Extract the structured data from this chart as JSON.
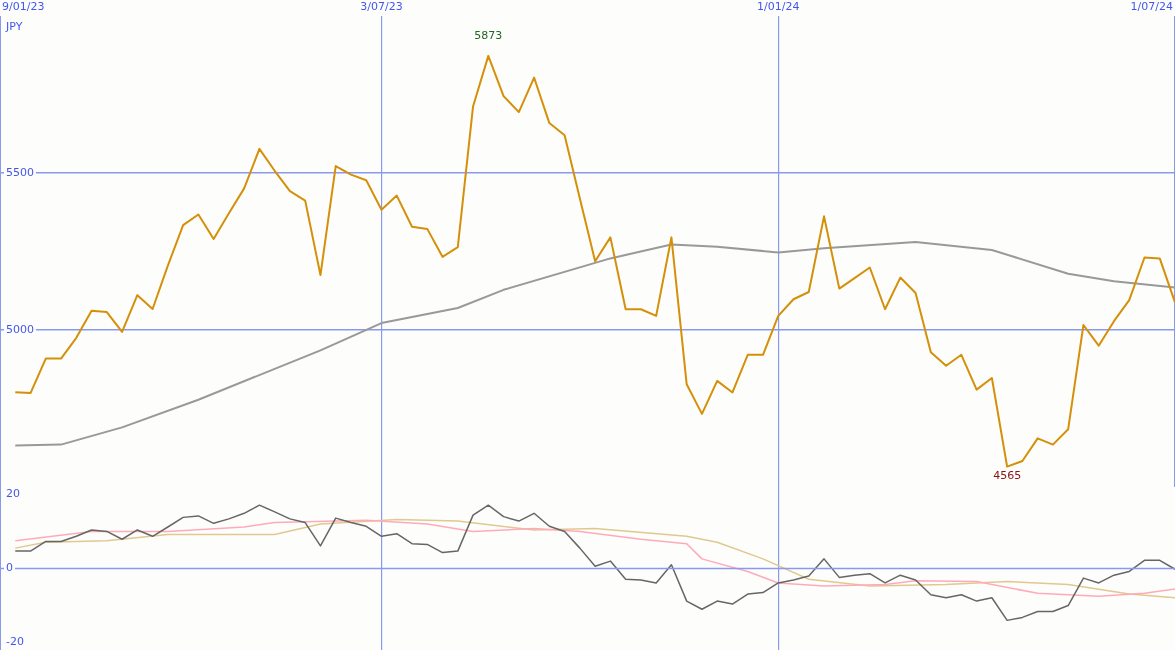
{
  "chart_data": [
    {
      "type": "line",
      "ylabel": "JPY",
      "marker": "none",
      "line_style": "solid",
      "grid": true,
      "legend": false,
      "xlim": [
        "2023-01-09",
        "2024-07-01"
      ],
      "xticks": [
        {
          "value": "2023-01-09",
          "label": "9/01/23"
        },
        {
          "value": "2023-07-03",
          "label": "3/07/23"
        },
        {
          "value": "2024-01-01",
          "label": "1/01/24"
        },
        {
          "value": "2024-07-01",
          "label": "1/07/24"
        }
      ],
      "ylim": [
        4500,
        6000
      ],
      "yticks": [
        5000,
        5500
      ],
      "x": [
        "2023-01-16",
        "2023-01-23",
        "2023-01-30",
        "2023-02-06",
        "2023-02-13",
        "2023-02-20",
        "2023-02-27",
        "2023-03-06",
        "2023-03-13",
        "2023-03-20",
        "2023-03-27",
        "2023-04-03",
        "2023-04-10",
        "2023-04-17",
        "2023-04-24",
        "2023-05-01",
        "2023-05-08",
        "2023-05-15",
        "2023-05-22",
        "2023-05-29",
        "2023-06-05",
        "2023-06-12",
        "2023-06-19",
        "2023-06-26",
        "2023-07-03",
        "2023-07-10",
        "2023-07-17",
        "2023-07-24",
        "2023-07-31",
        "2023-08-07",
        "2023-08-14",
        "2023-08-21",
        "2023-08-28",
        "2023-09-04",
        "2023-09-11",
        "2023-09-18",
        "2023-09-25",
        "2023-10-02",
        "2023-10-09",
        "2023-10-16",
        "2023-10-23",
        "2023-10-30",
        "2023-11-06",
        "2023-11-13",
        "2023-11-20",
        "2023-11-27",
        "2023-12-04",
        "2023-12-11",
        "2023-12-18",
        "2023-12-25",
        "2024-01-01",
        "2024-01-08",
        "2024-01-15",
        "2024-01-22",
        "2024-01-29",
        "2024-02-05",
        "2024-02-12",
        "2024-02-19",
        "2024-02-26",
        "2024-03-04",
        "2024-03-11",
        "2024-03-18",
        "2024-03-25",
        "2024-04-01",
        "2024-04-08",
        "2024-04-15",
        "2024-04-22",
        "2024-04-29",
        "2024-05-06",
        "2024-05-13",
        "2024-05-20",
        "2024-05-27",
        "2024-06-03",
        "2024-06-10",
        "2024-06-17",
        "2024-06-24",
        "2024-07-01"
      ],
      "series": [
        {
          "color": "#d4900a",
          "values": [
            4802,
            4799,
            4909,
            4909,
            4975,
            5061,
            5057,
            4994,
            5111,
            5067,
            5205,
            5334,
            5368,
            5290,
            5372,
            5451,
            5577,
            5507,
            5442,
            5412,
            5175,
            5522,
            5495,
            5477,
            5383,
            5428,
            5329,
            5322,
            5233,
            5264,
            5712,
            5873,
            5745,
            5694,
            5804,
            5659,
            5620,
            5419,
            5219,
            5295,
            5066,
            5066,
            5045,
            5295,
            4827,
            4733,
            4838,
            4801,
            4921,
            4921,
            5045,
            5098,
            5121,
            5362,
            5132,
            5165,
            5199,
            5066,
            5167,
            5118,
            4929,
            4886,
            4921,
            4810,
            4847,
            4565,
            4583,
            4655,
            4635,
            4684,
            5016,
            4950,
            5028,
            5095,
            5231,
            5228,
            5088
          ]
        },
        {
          "color": "#999999",
          "x": [
            "2023-01-16",
            "2023-02-06",
            "2023-03-06",
            "2023-04-10",
            "2023-06-05",
            "2023-07-03",
            "2023-08-07",
            "2023-08-28",
            "2023-10-16",
            "2023-11-13",
            "2023-12-04",
            "2024-01-01",
            "2024-01-22",
            "2024-03-04",
            "2024-04-08",
            "2024-05-13",
            "2024-06-03",
            "2024-07-01"
          ],
          "values": [
            4632,
            4635,
            4690,
            4778,
            4935,
            5022,
            5070,
            5128,
            5228,
            5272,
            5265,
            5247,
            5260,
            5280,
            5255,
            5179,
            5155,
            5135
          ]
        }
      ],
      "annotations": [
        {
          "text": "5873",
          "x": "2023-08-21",
          "y": 5873
        },
        {
          "text": "4565",
          "x": "2024-04-15",
          "y": 4565
        }
      ]
    },
    {
      "type": "line",
      "marker": "none",
      "line_style": "solid",
      "grid": "x",
      "legend": false,
      "tick_labels": "y",
      "xlim": [
        "2023-01-09",
        "2024-07-01"
      ],
      "xticks": [
        {
          "value": "2023-07-03",
          "label": null
        },
        {
          "value": "2024-01-01",
          "label": null
        }
      ],
      "ylim": [
        -22,
        22
      ],
      "yticks": [
        20,
        0,
        -20
      ],
      "ref_lines": [
        {
          "axis": "y",
          "value": 0,
          "color": "#8899ee"
        }
      ],
      "x": [
        "2023-01-16",
        "2023-01-23",
        "2023-01-30",
        "2023-02-06",
        "2023-02-13",
        "2023-02-20",
        "2023-02-27",
        "2023-03-06",
        "2023-03-13",
        "2023-03-20",
        "2023-03-27",
        "2023-04-03",
        "2023-04-10",
        "2023-04-17",
        "2023-04-24",
        "2023-05-01",
        "2023-05-08",
        "2023-05-15",
        "2023-05-22",
        "2023-05-29",
        "2023-06-05",
        "2023-06-12",
        "2023-06-19",
        "2023-06-26",
        "2023-07-03",
        "2023-07-10",
        "2023-07-17",
        "2023-07-24",
        "2023-07-31",
        "2023-08-07",
        "2023-08-14",
        "2023-08-21",
        "2023-08-28",
        "2023-09-04",
        "2023-09-11",
        "2023-09-18",
        "2023-09-25",
        "2023-10-02",
        "2023-10-09",
        "2023-10-16",
        "2023-10-23",
        "2023-10-30",
        "2023-11-06",
        "2023-11-13",
        "2023-11-20",
        "2023-11-27",
        "2023-12-04",
        "2023-12-11",
        "2023-12-18",
        "2023-12-25",
        "2024-01-01",
        "2024-01-08",
        "2024-01-15",
        "2024-01-22",
        "2024-01-29",
        "2024-02-05",
        "2024-02-12",
        "2024-02-19",
        "2024-02-26",
        "2024-03-04",
        "2024-03-11",
        "2024-03-18",
        "2024-03-25",
        "2024-04-01",
        "2024-04-08",
        "2024-04-15",
        "2024-04-22",
        "2024-04-29",
        "2024-05-06",
        "2024-05-13",
        "2024-05-20",
        "2024-05-27",
        "2024-06-03",
        "2024-06-10",
        "2024-06-17",
        "2024-06-24",
        "2024-07-01"
      ],
      "series": [
        {
          "color": "#666666",
          "values": [
            4.7,
            4.7,
            7.3,
            7.3,
            8.7,
            10.4,
            10.0,
            7.9,
            10.4,
            8.7,
            11.2,
            13.8,
            14.2,
            12.2,
            13.4,
            14.9,
            17.1,
            15.3,
            13.4,
            12.4,
            6.1,
            13.6,
            12.4,
            11.4,
            8.7,
            9.4,
            6.7,
            6.5,
            4.3,
            4.7,
            14.4,
            17.1,
            14.0,
            12.8,
            14.9,
            11.4,
            10.0,
            5.5,
            0.6,
            2.0,
            -2.9,
            -3.1,
            -3.9,
            1.0,
            -8.8,
            -11.0,
            -8.8,
            -9.6,
            -6.9,
            -6.5,
            -3.9,
            -3.1,
            -2.0,
            2.6,
            -2.4,
            -1.8,
            -1.4,
            -3.9,
            -1.8,
            -3.1,
            -7.1,
            -7.9,
            -7.1,
            -8.8,
            -7.9,
            -14.0,
            -13.2,
            -11.6,
            -11.6,
            -10.0,
            -2.6,
            -3.9,
            -1.8,
            -0.8,
            2.2,
            2.2,
            -0.2
          ]
        },
        {
          "color": "#ffaabb",
          "x": [
            "2023-01-16",
            "2023-02-20",
            "2023-03-27",
            "2023-05-01",
            "2023-05-15",
            "2023-06-26",
            "2023-07-24",
            "2023-08-14",
            "2023-09-11",
            "2023-10-02",
            "2023-10-30",
            "2023-11-20",
            "2023-11-27",
            "2023-12-18",
            "2024-01-01",
            "2024-01-22",
            "2024-02-19",
            "2024-03-04",
            "2024-04-01",
            "2024-04-29",
            "2024-05-27",
            "2024-06-17",
            "2024-07-01"
          ],
          "values": [
            7.5,
            10.0,
            10.0,
            11.2,
            12.4,
            13.0,
            12.0,
            10.0,
            10.8,
            10.0,
            7.9,
            6.7,
            2.6,
            -0.8,
            -3.9,
            -4.7,
            -4.3,
            -3.3,
            -3.5,
            -6.7,
            -7.5,
            -6.7,
            -5.5
          ]
        },
        {
          "color": "#e0c890",
          "x": [
            "2023-01-16",
            "2023-01-30",
            "2023-02-27",
            "2023-03-27",
            "2023-05-15",
            "2023-06-05",
            "2023-07-10",
            "2023-08-07",
            "2023-09-11",
            "2023-10-09",
            "2023-11-20",
            "2023-12-04",
            "2023-12-25",
            "2024-01-15",
            "2024-02-12",
            "2024-03-18",
            "2024-04-15",
            "2024-05-13",
            "2024-06-10",
            "2024-07-01"
          ],
          "values": [
            5.5,
            7.1,
            7.5,
            9.2,
            9.2,
            12.0,
            13.2,
            12.8,
            10.4,
            10.8,
            8.7,
            7.1,
            2.6,
            -2.9,
            -4.7,
            -4.3,
            -3.5,
            -4.3,
            -6.9,
            -7.9
          ]
        }
      ]
    }
  ]
}
